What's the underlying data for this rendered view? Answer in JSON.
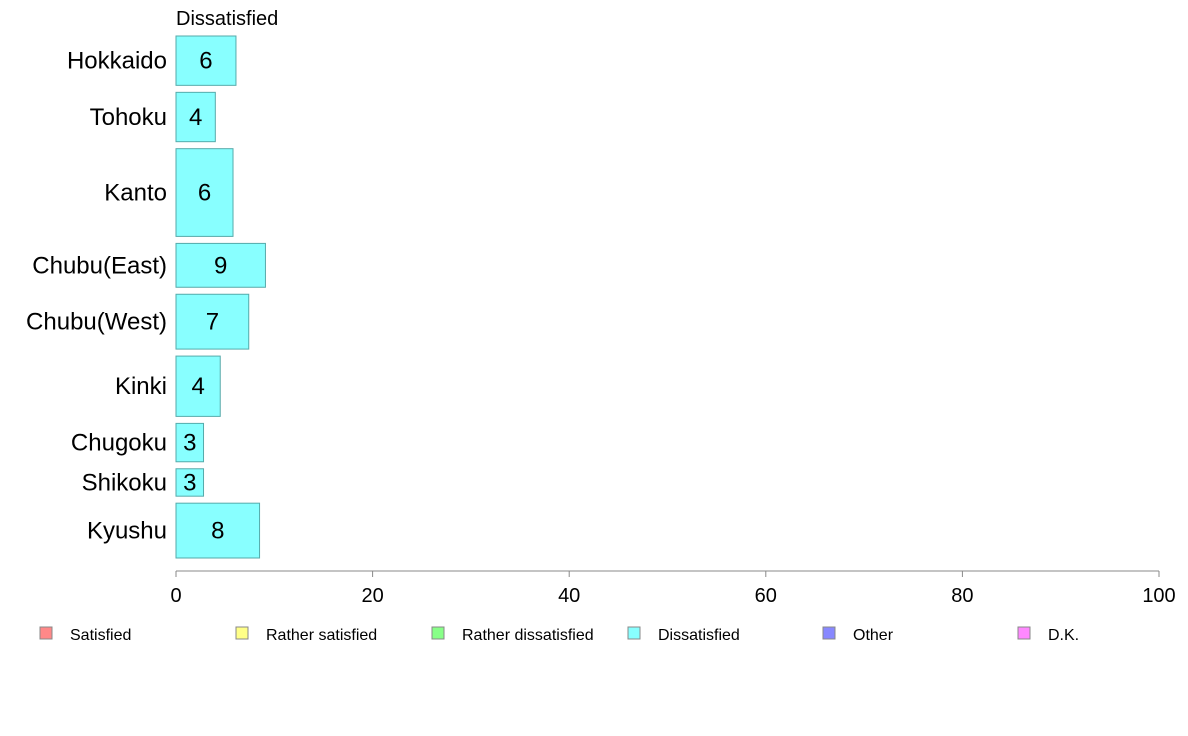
{
  "chart_data": {
    "type": "bar",
    "orientation": "horizontal",
    "series_label": "Dissatisfied",
    "categories": [
      "Hokkaido",
      "Tohoku",
      "Kanto",
      "Chubu(East)",
      "Chubu(West)",
      "Kinki",
      "Chugoku",
      "Shikoku",
      "Kyushu"
    ],
    "values": [
      6,
      4,
      6,
      9,
      7,
      4,
      3,
      3,
      8
    ],
    "data_labels": [
      "6",
      "4",
      "6",
      "9",
      "7",
      "4",
      "3",
      "3",
      "8"
    ],
    "bar_widths_relative": [
      0.9,
      0.9,
      1.6,
      0.8,
      1.0,
      1.1,
      0.7,
      0.5,
      1.0
    ],
    "bar_values_precise": [
      6.1,
      4.0,
      5.8,
      9.1,
      7.4,
      4.5,
      2.8,
      2.8,
      8.5
    ],
    "xlim": [
      0,
      100
    ],
    "x_ticks": [
      0,
      20,
      40,
      60,
      80,
      100
    ],
    "x_tick_labels": [
      "0",
      "20",
      "40",
      "60",
      "80",
      "100"
    ],
    "bar_color": "#88ffff",
    "bar_stroke": "#55aaaa",
    "legend_placement": "bottom",
    "legend": [
      {
        "label": "Satisfied",
        "color": "#ff8888"
      },
      {
        "label": "Rather satisfied",
        "color": "#ffff88"
      },
      {
        "label": "Rather dissatisfied",
        "color": "#88ff88"
      },
      {
        "label": "Dissatisfied",
        "color": "#88ffff"
      },
      {
        "label": "Other",
        "color": "#8888ff"
      },
      {
        "label": "D.K.",
        "color": "#ff88ff"
      }
    ]
  }
}
